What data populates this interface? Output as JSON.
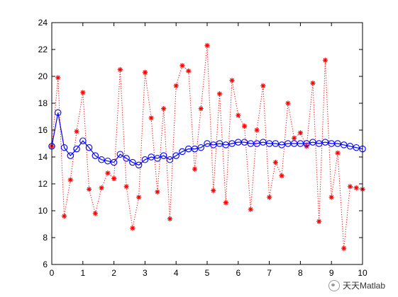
{
  "chart_data": {
    "type": "line",
    "title": "",
    "xlabel": "",
    "ylabel": "",
    "xlim": [
      0,
      10
    ],
    "ylim": [
      6,
      24
    ],
    "xticks": [
      0,
      1,
      2,
      3,
      4,
      5,
      6,
      7,
      8,
      9,
      10
    ],
    "yticks": [
      6,
      8,
      10,
      12,
      14,
      16,
      18,
      20,
      22,
      24
    ],
    "x": [
      0,
      0.2,
      0.4,
      0.6,
      0.8,
      1.0,
      1.2,
      1.4,
      1.6,
      1.8,
      2.0,
      2.2,
      2.4,
      2.6,
      2.8,
      3.0,
      3.2,
      3.4,
      3.6,
      3.8,
      4.0,
      4.2,
      4.4,
      4.6,
      4.8,
      5.0,
      5.2,
      5.4,
      5.6,
      5.8,
      6.0,
      6.2,
      6.4,
      6.6,
      6.8,
      7.0,
      7.2,
      7.4,
      7.6,
      7.8,
      8.0,
      8.2,
      8.4,
      8.6,
      8.8,
      9.0,
      9.2,
      9.4,
      9.6,
      9.8,
      10.0
    ],
    "grid": false,
    "series": [
      {
        "style": "red-dotted-star",
        "color": "#ff0000",
        "values": [
          14.8,
          19.9,
          9.6,
          12.3,
          15.9,
          18.8,
          11.6,
          9.8,
          11.7,
          12.8,
          12.4,
          20.5,
          11.8,
          8.7,
          11.0,
          20.3,
          16.9,
          11.4,
          17.6,
          9.4,
          19.3,
          20.8,
          20.4,
          13.1,
          17.6,
          22.3,
          11.5,
          18.7,
          10.6,
          19.7,
          17.1,
          16.3,
          10.1,
          16.0,
          19.3,
          11.0,
          13.6,
          12.6,
          18.0,
          15.4,
          15.8,
          14.8,
          19.5,
          9.2,
          21.2,
          11.0,
          14.3,
          7.2,
          11.8,
          11.7,
          11.6
        ]
      },
      {
        "style": "blue-solid-circle",
        "color": "#0000ff",
        "values": [
          14.8,
          17.3,
          14.7,
          14.1,
          14.6,
          15.2,
          14.7,
          14.1,
          13.8,
          13.7,
          13.6,
          14.2,
          13.9,
          13.6,
          13.4,
          13.8,
          14.0,
          13.9,
          14.1,
          13.8,
          14.1,
          14.4,
          14.6,
          14.6,
          14.7,
          15.0,
          14.9,
          15.0,
          14.9,
          15.0,
          15.1,
          15.1,
          15.0,
          15.0,
          15.1,
          15.0,
          15.0,
          14.9,
          15.0,
          15.0,
          15.0,
          15.0,
          15.1,
          15.0,
          15.1,
          15.0,
          15.0,
          14.9,
          14.8,
          14.7,
          14.6
        ]
      }
    ]
  },
  "watermark": {
    "text": "天天Matlab",
    "icon": "wechat-icon"
  }
}
